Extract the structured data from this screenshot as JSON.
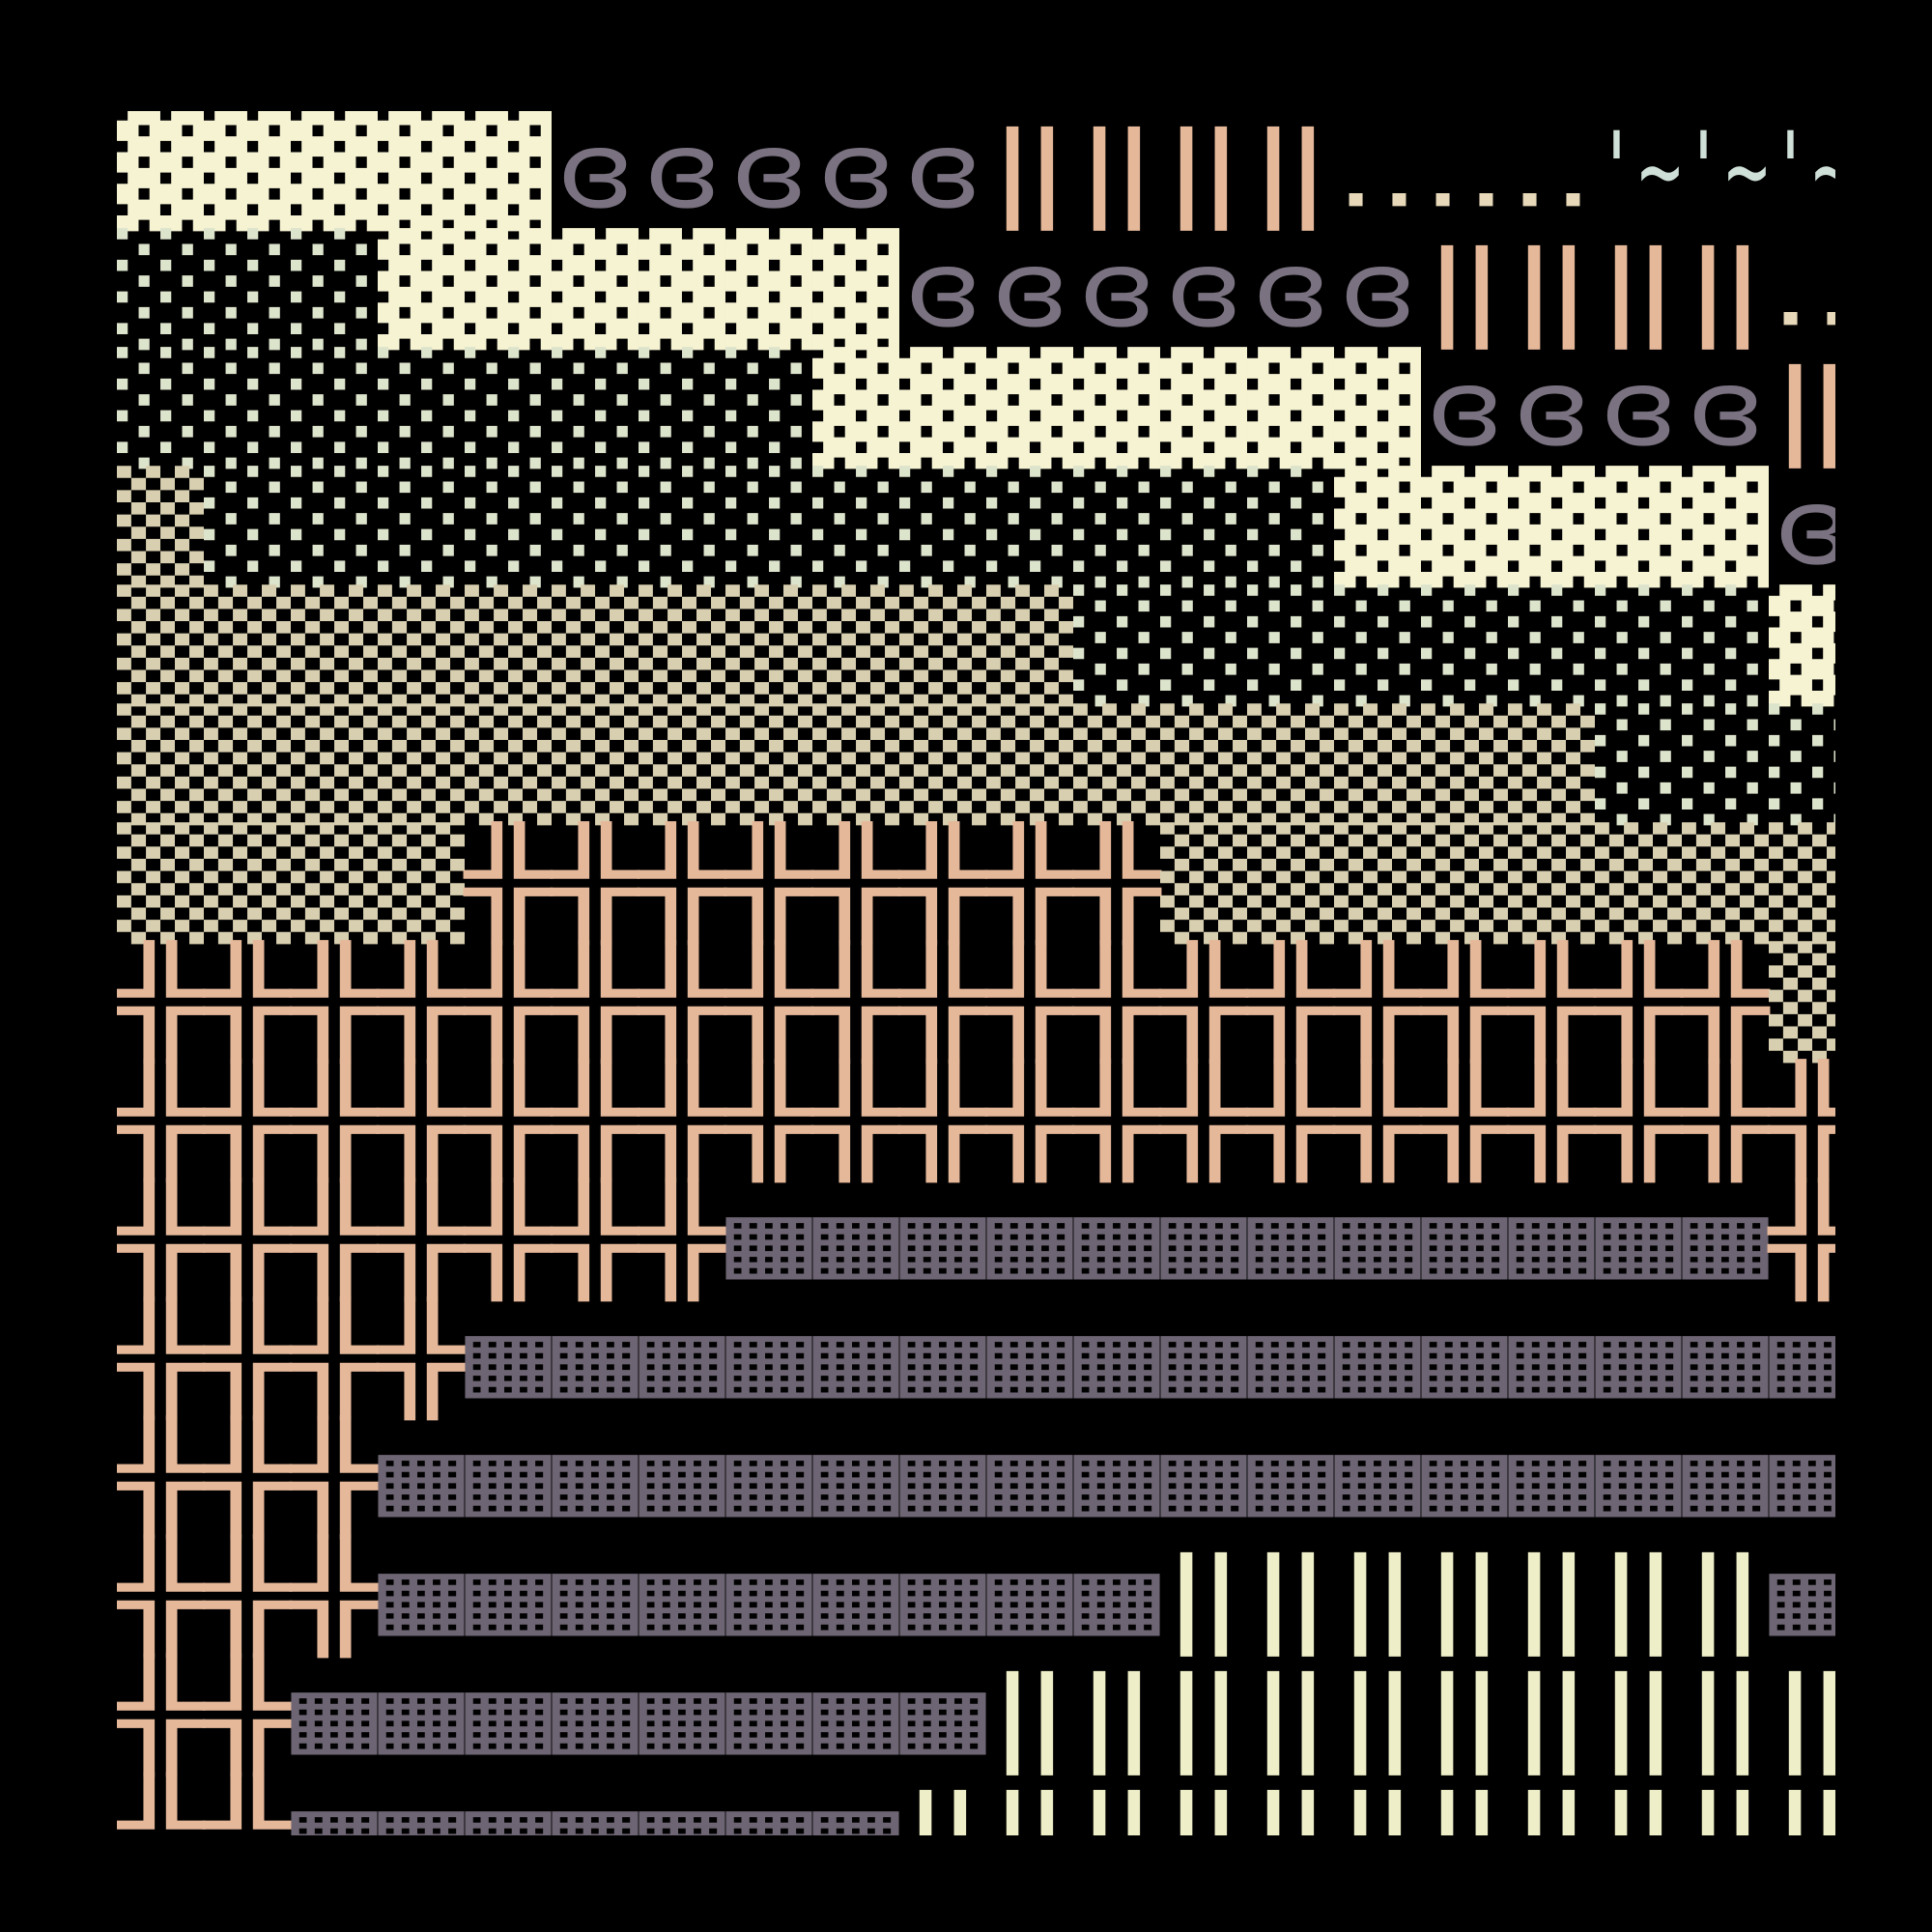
{
  "terminal": {
    "rows": [
      [
        {
          "text": "▓▓▓▓▓",
          "color": "#f6f3d3"
        },
        {
          "text": "ɞɞɞɞɞ",
          "color": "#7a7280"
        },
        {
          "text": "‖‖‖‖",
          "color": "#e6b89a"
        },
        {
          "text": "‥‥‥",
          "color": "#e6d8b8"
        },
        {
          "text": "'~'~'~",
          "color": "#cfe0d8"
        }
      ],
      [
        {
          "text": "░░░",
          "color": "#dde4cc"
        },
        {
          "text": "▓▓▓▓▓▓",
          "color": "#f6f3d3"
        },
        {
          "text": "ɞɞɞɞɞɞ",
          "color": "#7a7280"
        },
        {
          "text": "‖‖‖‖",
          "color": "#e6b89a"
        },
        {
          "text": "‥",
          "color": "#e6d8b8"
        }
      ],
      [
        {
          "text": "░░░░░░░░",
          "color": "#dde4cc"
        },
        {
          "text": "▓▓▓▓▓▓▓",
          "color": "#f6f3d3"
        },
        {
          "text": "ɞɞɞɞ",
          "color": "#7a7280"
        },
        {
          "text": "‖",
          "color": "#e6b89a"
        }
      ],
      [
        {
          "text": "▒",
          "color": "#d8cfb0"
        },
        {
          "text": "░░░░░░░░░░░░░",
          "color": "#dde4cc"
        },
        {
          "text": "▓▓▓▓▓",
          "color": "#f6f3d3"
        },
        {
          "text": "ɞ",
          "color": "#7a7280"
        }
      ],
      [
        {
          "text": "▒▒▒▒▒▒▒▒▒▒▒",
          "color": "#d8cfb0"
        },
        {
          "text": "░░░░░░░░",
          "color": "#dde4cc"
        },
        {
          "text": "▓",
          "color": "#f6f3d3"
        }
      ],
      [
        {
          "text": "▒▒▒▒▒▒▒▒▒▒▒▒▒▒▒▒▒",
          "color": "#d8cfb0"
        },
        {
          "text": "░░░",
          "color": "#dde4cc"
        }
      ],
      [
        {
          "text": "▒▒▒▒",
          "color": "#d8cfb0"
        },
        {
          "text": "╬╬╬╬╬╬╬╬",
          "color": "#e6b89a"
        },
        {
          "text": "▒▒▒▒▒▒▒▒",
          "color": "#d8cfb0"
        }
      ],
      [
        {
          "text": "╬╬╬╬╬╬╬╬╬╬╬╬╬╬╬╬╬╬╬",
          "color": "#e6b89a"
        },
        {
          "text": "▒",
          "color": "#d8cfb0"
        }
      ],
      [
        {
          "text": "╬╬╬╬╬╬╬╬╬╬╬╬╬╬╬╬╬╬╬╬",
          "color": "#e6b89a"
        }
      ],
      [
        {
          "text": "╬╬╬╬╬╬╬",
          "color": "#e6b89a"
        },
        {
          "text": "▦▦▦▦▦▦▦▦▦▦▦▦",
          "color": "#6d6573"
        },
        {
          "text": "╬",
          "color": "#e6b89a"
        }
      ],
      [
        {
          "text": "╬╬╬╬",
          "color": "#e6b89a"
        },
        {
          "text": "▦▦▦▦▦▦▦▦▦▦▦▦▦▦▦▦",
          "color": "#6d6573"
        }
      ],
      [
        {
          "text": "╬╬╬",
          "color": "#e6b89a"
        },
        {
          "text": "▦▦▦▦▦▦▦▦▦▦▦▦▦▦▦▦▦",
          "color": "#6d6573"
        }
      ],
      [
        {
          "text": "╬╬╬",
          "color": "#e6b89a"
        },
        {
          "text": "▦▦▦▦▦▦▦▦▦",
          "color": "#6d6573"
        },
        {
          "text": "‖‖‖‖‖‖‖",
          "color": "#eeeec8"
        },
        {
          "text": "▦",
          "color": "#6d6573"
        }
      ],
      [
        {
          "text": "╬╬",
          "color": "#e6b89a"
        },
        {
          "text": "▦▦▦▦▦▦▦▦",
          "color": "#6d6573"
        },
        {
          "text": "‖‖‖‖‖‖‖‖‖‖",
          "color": "#eeeec8"
        }
      ],
      [
        {
          "text": "╬╬",
          "color": "#e6b89a"
        },
        {
          "text": "▦▦▦▦▦▦▦",
          "color": "#6d6573"
        },
        {
          "text": "‖‖‖‖‖‖‖‖‖‖‖",
          "color": "#eeeec8"
        }
      ]
    ]
  }
}
